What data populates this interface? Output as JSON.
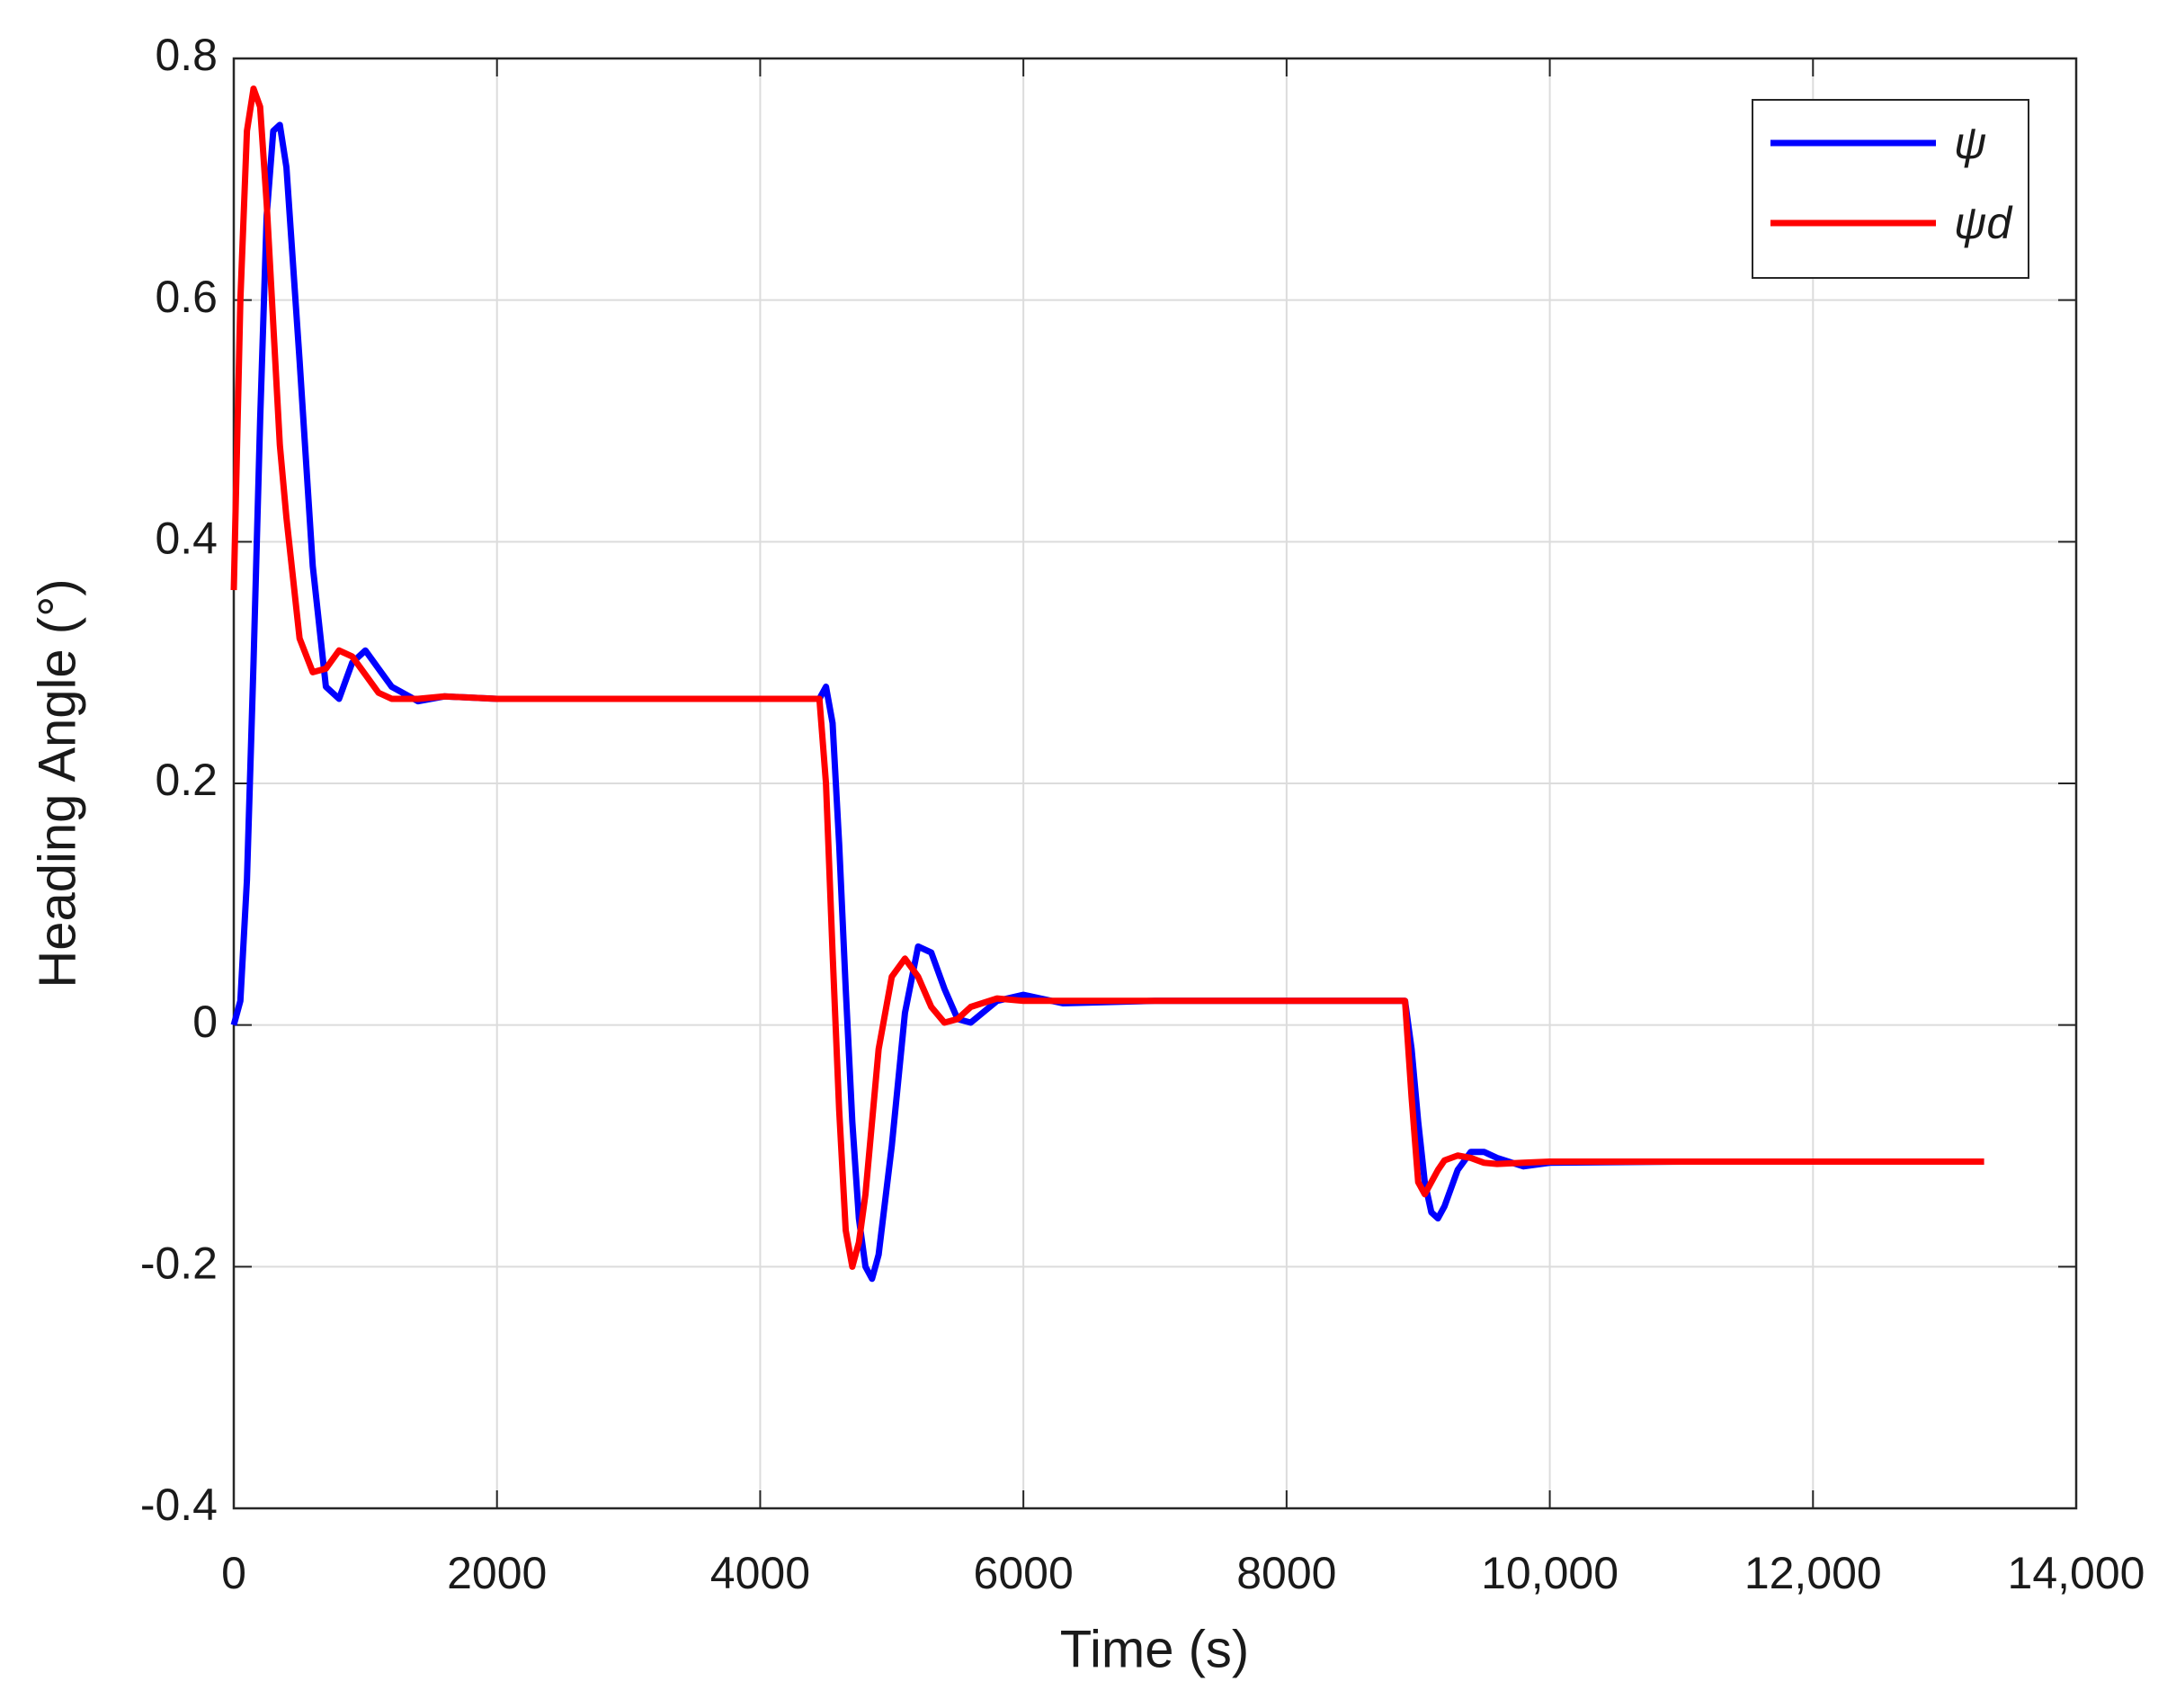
{
  "chart_data": {
    "type": "line",
    "xlabel": "Time (s)",
    "ylabel": "Heading Angle (°)",
    "x": [
      0,
      50,
      100,
      150,
      200,
      250,
      300,
      350,
      400,
      500,
      600,
      700,
      800,
      900,
      1000,
      1100,
      1200,
      1400,
      1600,
      2000,
      3000,
      4000,
      4450,
      4500,
      4550,
      4600,
      4650,
      4700,
      4750,
      4800,
      4850,
      4900,
      5000,
      5100,
      5200,
      5300,
      5400,
      5500,
      5600,
      5800,
      6000,
      6300,
      7000,
      8000,
      8900,
      8950,
      9000,
      9050,
      9100,
      9150,
      9200,
      9300,
      9400,
      9500,
      9600,
      9800,
      10000,
      11000,
      12000,
      13300
    ],
    "series": [
      {
        "name": "ψ",
        "color": "#0000ff",
        "values": [
          0,
          0.02,
          0.12,
          0.3,
          0.5,
          0.67,
          0.74,
          0.745,
          0.71,
          0.55,
          0.38,
          0.28,
          0.27,
          0.3,
          0.31,
          0.295,
          0.28,
          0.268,
          0.272,
          0.27,
          0.27,
          0.27,
          0.27,
          0.28,
          0.25,
          0.15,
          0.03,
          -0.08,
          -0.16,
          -0.2,
          -0.21,
          -0.19,
          -0.1,
          0.01,
          0.065,
          0.06,
          0.03,
          0.005,
          0.002,
          0.02,
          0.025,
          0.018,
          0.02,
          0.02,
          0.02,
          -0.02,
          -0.08,
          -0.13,
          -0.155,
          -0.16,
          -0.15,
          -0.12,
          -0.105,
          -0.105,
          -0.11,
          -0.117,
          -0.114,
          -0.113,
          -0.113,
          -0.113
        ]
      },
      {
        "name": "ψd",
        "color": "#ff0000",
        "values": [
          0.36,
          0.6,
          0.74,
          0.775,
          0.76,
          0.68,
          0.58,
          0.48,
          0.42,
          0.32,
          0.292,
          0.295,
          0.31,
          0.305,
          0.29,
          0.275,
          0.27,
          0.27,
          0.272,
          0.27,
          0.27,
          0.27,
          0.27,
          0.2,
          0.06,
          -0.07,
          -0.17,
          -0.2,
          -0.18,
          -0.14,
          -0.08,
          -0.02,
          0.04,
          0.055,
          0.04,
          0.015,
          0.002,
          0.005,
          0.015,
          0.022,
          0.02,
          0.02,
          0.02,
          0.02,
          0.02,
          -0.06,
          -0.13,
          -0.14,
          -0.13,
          -0.12,
          -0.112,
          -0.108,
          -0.11,
          -0.114,
          -0.115,
          -0.114,
          -0.113,
          -0.113,
          -0.113,
          -0.113
        ]
      }
    ],
    "xlim": [
      0,
      14000
    ],
    "xticks": [
      0,
      2000,
      4000,
      6000,
      8000,
      {
        "value": 10000,
        "label": "10,000"
      },
      {
        "value": 12000,
        "label": "12,000"
      },
      {
        "value": 14000,
        "label": "14,000"
      }
    ],
    "ylim": [
      -0.4,
      0.8
    ],
    "yticks": [
      -0.4,
      -0.2,
      0,
      0.2,
      0.4,
      0.6,
      0.8
    ],
    "grid": true,
    "legend": "upper right"
  }
}
